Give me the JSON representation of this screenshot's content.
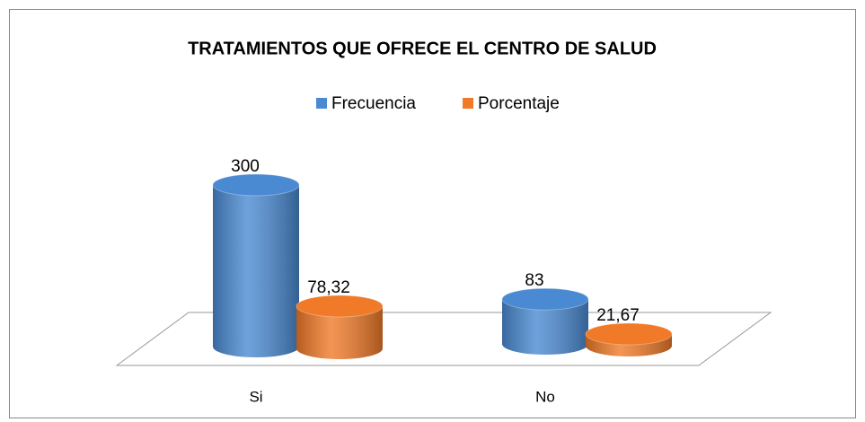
{
  "chart_data": {
    "type": "bar",
    "title": "TRATAMIENTOS QUE OFRECE EL CENTRO DE SALUD",
    "categories": [
      "Si",
      "No"
    ],
    "series": [
      {
        "name": "Frecuencia",
        "color": "#4a8ad2",
        "values": [
          300,
          83
        ]
      },
      {
        "name": "Porcentaje",
        "color": "#f07a28",
        "values": [
          78.32,
          21.67
        ],
        "value_labels": [
          "78,32",
          "21,67"
        ]
      }
    ],
    "legend": "top"
  }
}
